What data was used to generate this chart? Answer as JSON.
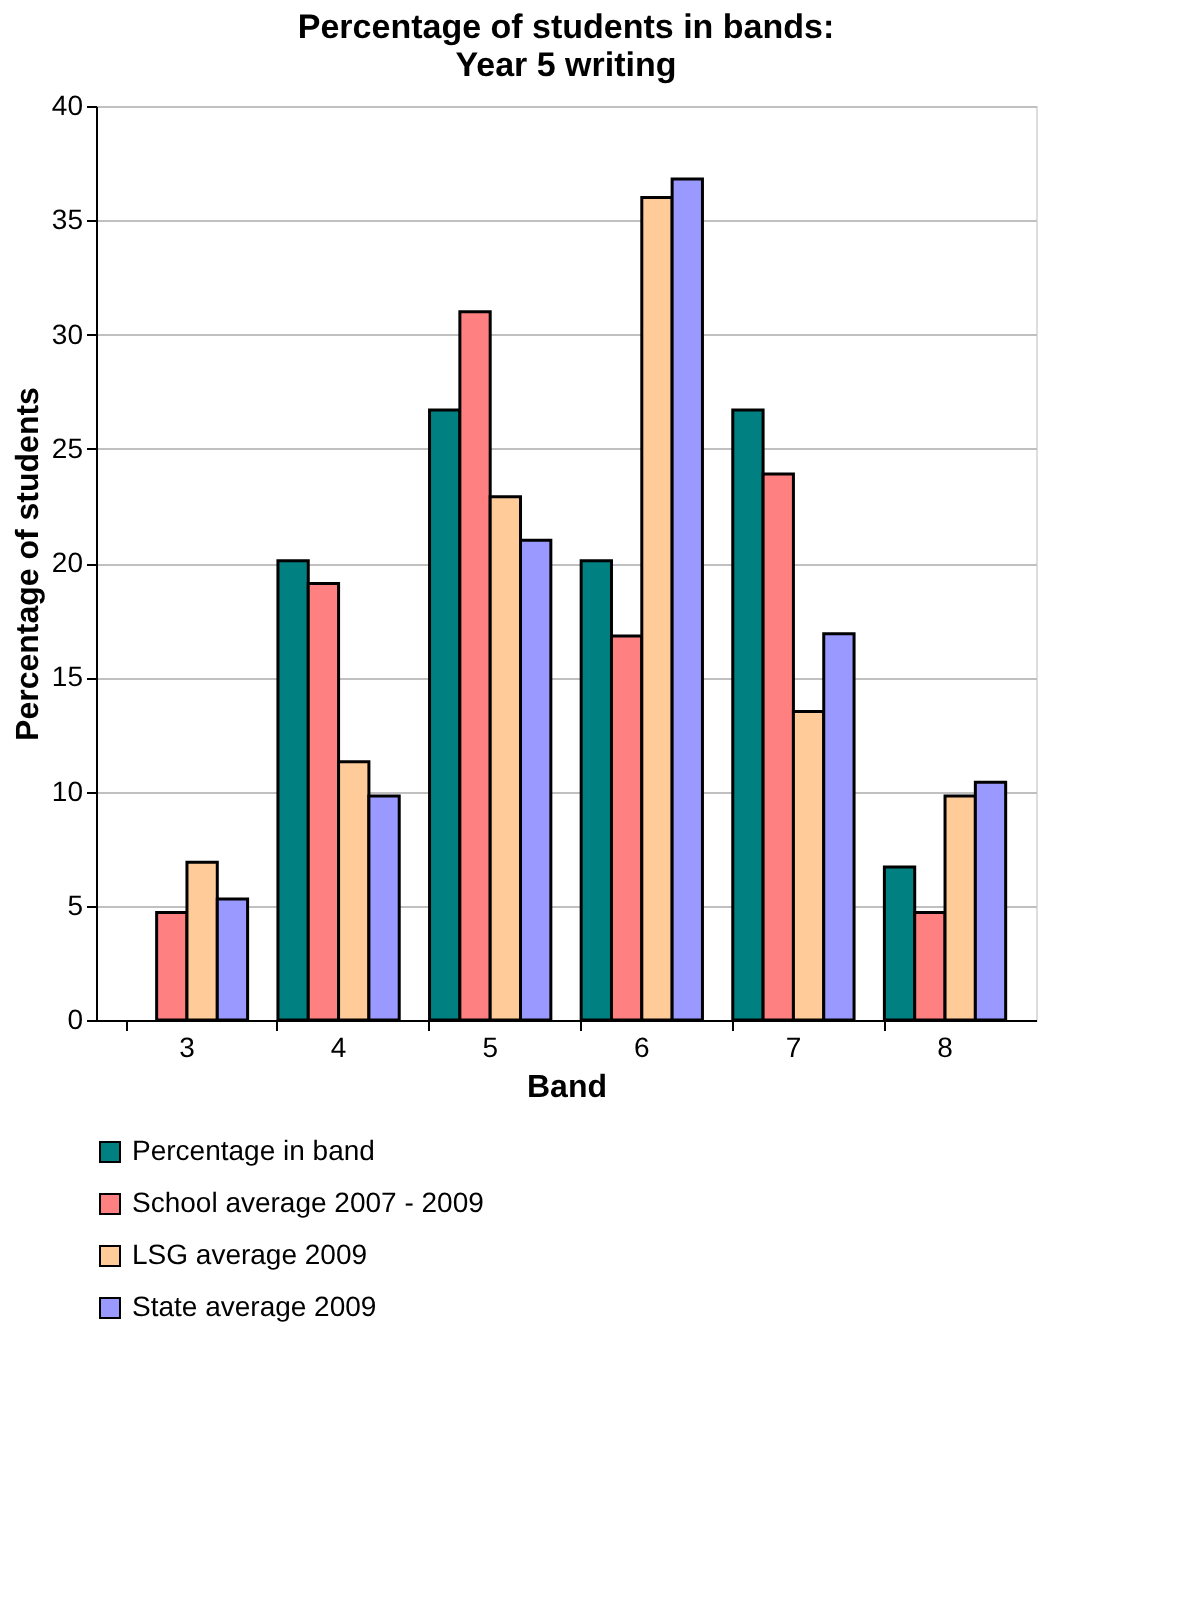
{
  "chart_data": {
    "type": "bar",
    "title": [
      "Percentage of students in bands:",
      "Year 5 writing"
    ],
    "xlabel": "Band",
    "ylabel": "Percentage of students",
    "categories": [
      "3",
      "4",
      "5",
      "6",
      "7",
      "8"
    ],
    "series": [
      {
        "name": "Percentage in band",
        "color": "#008080",
        "values": [
          null,
          20.1,
          26.7,
          20.1,
          26.7,
          6.7
        ]
      },
      {
        "name": "School average 2007 - 2009",
        "color": "#ff8080",
        "values": [
          4.7,
          19.1,
          31.0,
          16.8,
          23.9,
          4.7
        ]
      },
      {
        "name": "LSG average 2009",
        "color": "#ffcc99",
        "values": [
          6.9,
          11.3,
          22.9,
          36.0,
          13.5,
          9.8
        ]
      },
      {
        "name": "State average 2009",
        "color": "#9999ff",
        "values": [
          5.3,
          9.8,
          21.0,
          36.8,
          16.9,
          10.4
        ]
      }
    ],
    "ylim": [
      0,
      40
    ],
    "yticks": [
      0,
      5,
      10,
      15,
      20,
      25,
      30,
      35,
      40
    ],
    "grid": "y",
    "legend": "bottom"
  }
}
